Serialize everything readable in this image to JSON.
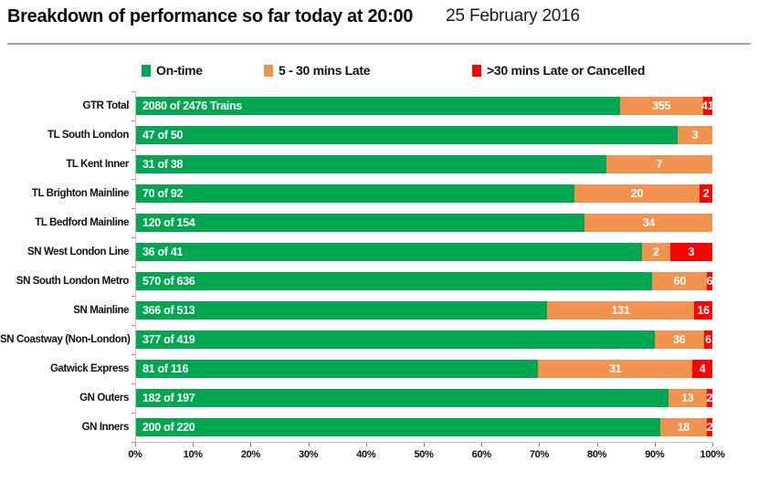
{
  "header": {
    "title": "Breakdown of performance so far today at 20:00",
    "date": "25 February 2016"
  },
  "legend": {
    "items": [
      {
        "label": "On-time",
        "color": "#00a651"
      },
      {
        "label": "5 - 30 mins Late",
        "color": "#f0934e"
      },
      {
        "label": ">30 mins Late or Cancelled",
        "color": "#fe0000"
      }
    ]
  },
  "chart_data": {
    "type": "bar",
    "orientation": "horizontal",
    "stacked": true,
    "title": "Breakdown of performance so far today at 20:00",
    "series": [
      "On-time",
      "5 - 30 mins Late",
      ">30 mins Late or Cancelled"
    ],
    "colors": {
      "on_time": "#00a651",
      "late": "#f0934e",
      "cancelled": "#fe0000"
    },
    "x_axis": {
      "min": 0,
      "max": 100,
      "unit": "percent",
      "tick_labels": [
        "0%",
        "10%",
        "20%",
        "30%",
        "40%",
        "50%",
        "60%",
        "70%",
        "80%",
        "90%",
        "100%"
      ]
    },
    "rows": [
      {
        "category": "GTR Total",
        "bar_label": "2080 of 2476 Trains",
        "on_time": 2080,
        "late": 355,
        "cancelled": 41,
        "total": 2476
      },
      {
        "category": "TL South London",
        "bar_label": "47 of 50",
        "on_time": 47,
        "late": 3,
        "cancelled": 0,
        "total": 50
      },
      {
        "category": "TL Kent Inner",
        "bar_label": "31 of 38",
        "on_time": 31,
        "late": 7,
        "cancelled": 0,
        "total": 38
      },
      {
        "category": "TL Brighton Mainline",
        "bar_label": "70 of 92",
        "on_time": 70,
        "late": 20,
        "cancelled": 2,
        "total": 92
      },
      {
        "category": "TL Bedford Mainline",
        "bar_label": "120 of 154",
        "on_time": 120,
        "late": 34,
        "cancelled": 0,
        "total": 154
      },
      {
        "category": "SN West London Line",
        "bar_label": "36 of 41",
        "on_time": 36,
        "late": 2,
        "cancelled": 3,
        "total": 41
      },
      {
        "category": "SN South London Metro",
        "bar_label": "570 of 636",
        "on_time": 570,
        "late": 60,
        "cancelled": 6,
        "total": 636
      },
      {
        "category": "SN Mainline",
        "bar_label": "366 of 513",
        "on_time": 366,
        "late": 131,
        "cancelled": 16,
        "total": 513
      },
      {
        "category": "SN Coastway (Non-London)",
        "bar_label": "377 of 419",
        "on_time": 377,
        "late": 36,
        "cancelled": 6,
        "total": 419
      },
      {
        "category": "Gatwick Express",
        "bar_label": "81 of 116",
        "on_time": 81,
        "late": 31,
        "cancelled": 4,
        "total": 116
      },
      {
        "category": "GN Outers",
        "bar_label": "182 of 197",
        "on_time": 182,
        "late": 13,
        "cancelled": 2,
        "total": 197
      },
      {
        "category": "GN Inners",
        "bar_label": "200 of 220",
        "on_time": 200,
        "late": 18,
        "cancelled": 2,
        "total": 220
      }
    ]
  }
}
